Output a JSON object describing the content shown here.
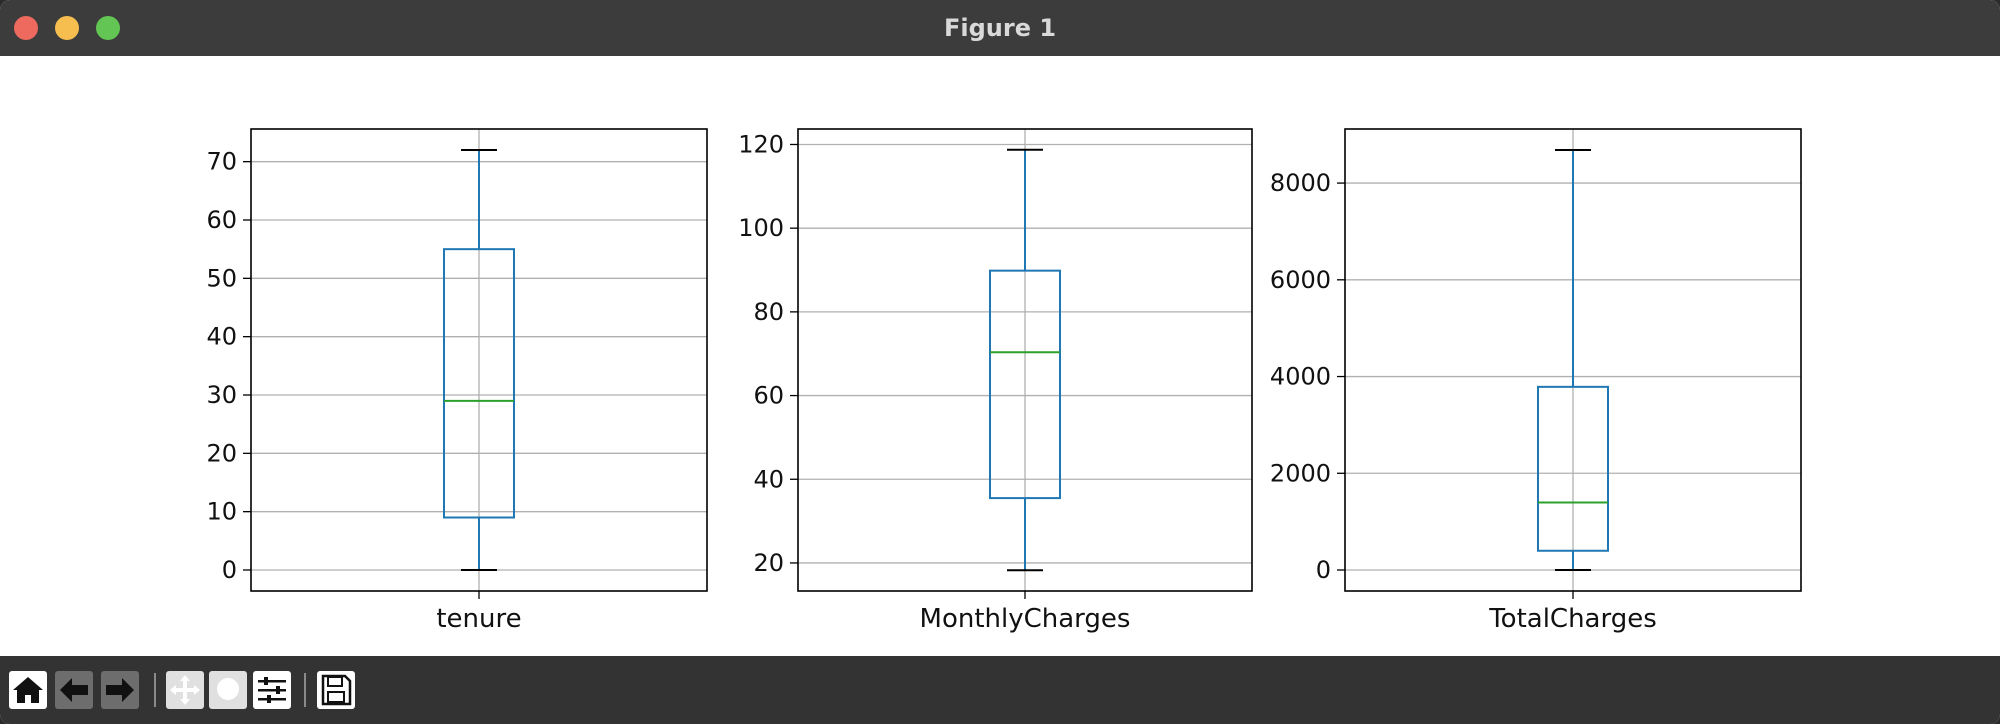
{
  "window": {
    "title": "Figure 1"
  },
  "chart_data": [
    {
      "type": "box",
      "xlabel": "tenure",
      "ylim": [
        -3.6,
        75.6
      ],
      "yticks": [
        0,
        10,
        20,
        30,
        40,
        50,
        60,
        70
      ],
      "ytick_labels": [
        "0",
        "10",
        "20",
        "30",
        "40",
        "50",
        "60",
        "70"
      ],
      "grid": true,
      "box": {
        "min": 0,
        "q1": 9,
        "median": 29,
        "q3": 55,
        "max": 72
      }
    },
    {
      "type": "box",
      "xlabel": "MonthlyCharges",
      "ylim": [
        13.3,
        123.7
      ],
      "yticks": [
        20,
        40,
        60,
        80,
        100,
        120
      ],
      "ytick_labels": [
        "20",
        "40",
        "60",
        "80",
        "100",
        "120"
      ],
      "grid": true,
      "box": {
        "min": 18.25,
        "q1": 35.5,
        "median": 70.35,
        "q3": 89.85,
        "max": 118.75
      }
    },
    {
      "type": "box",
      "xlabel": "TotalCharges",
      "ylim": [
        -434,
        9118
      ],
      "yticks": [
        0,
        2000,
        4000,
        6000,
        8000
      ],
      "ytick_labels": [
        "0",
        "2000",
        "4000",
        "6000",
        "8000"
      ],
      "grid": true,
      "box": {
        "min": 0,
        "q1": 398,
        "median": 1395,
        "q3": 3787,
        "max": 8685
      }
    }
  ],
  "colors": {
    "box": "#1f77b4",
    "median": "#2ca02c",
    "whisker_cap": "#000000",
    "grid": "#b0b0b0",
    "titlebar": "#3c3c3c",
    "toolbar": "#333333"
  },
  "toolbar": {
    "buttons": [
      {
        "name": "home-button",
        "icon": "home-icon"
      },
      {
        "name": "back-button",
        "icon": "arrow-left-icon"
      },
      {
        "name": "forward-button",
        "icon": "arrow-right-icon"
      },
      {
        "name": "pan-button",
        "icon": "move-icon"
      },
      {
        "name": "zoom-button",
        "icon": "zoom-icon"
      },
      {
        "name": "configure-subplots-button",
        "icon": "sliders-icon"
      },
      {
        "name": "save-button",
        "icon": "save-icon"
      }
    ]
  }
}
